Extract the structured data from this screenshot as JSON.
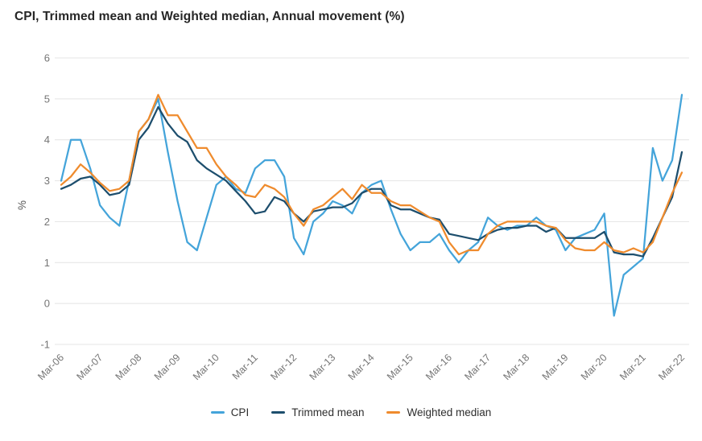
{
  "title": "CPI, Trimmed mean and Weighted median, Annual movement (%)",
  "colors": {
    "cpi": "#44a4da",
    "trimmed_mean": "#1d4e6d",
    "weighted_median": "#ef8b2d",
    "grid": "#e4e4e4",
    "axis_text": "#757575",
    "title_text": "#262626",
    "legend_text": "#2e2e2e"
  },
  "legend": {
    "items": [
      "CPI",
      "Trimmed mean",
      "Weighted median"
    ]
  },
  "chart_data": {
    "type": "line",
    "title": "CPI, Trimmed mean and Weighted median, Annual movement (%)",
    "xlabel": "",
    "ylabel": "%",
    "ylim": [
      -1,
      6
    ],
    "yticks": [
      6,
      5,
      4,
      3,
      2,
      1,
      0,
      -1
    ],
    "grid": "horizontal",
    "legend_position": "bottom",
    "x_frequency": "quarterly",
    "x_tick_labels": [
      "Mar-06",
      "Mar-07",
      "Mar-08",
      "Mar-09",
      "Mar-10",
      "Mar-11",
      "Mar-12",
      "Mar-13",
      "Mar-14",
      "Mar-15",
      "Mar-16",
      "Mar-17",
      "Mar-18",
      "Mar-19",
      "Mar-20",
      "Mar-21",
      "Mar-22"
    ],
    "tick_every": 4,
    "series": [
      {
        "name": "CPI",
        "color": "#44a4da",
        "values": [
          3.0,
          4.0,
          4.0,
          3.3,
          2.4,
          2.1,
          1.9,
          3.0,
          4.2,
          4.5,
          5.0,
          3.7,
          2.5,
          1.5,
          1.3,
          2.1,
          2.9,
          3.1,
          2.8,
          2.7,
          3.3,
          3.5,
          3.5,
          3.1,
          1.6,
          1.2,
          2.0,
          2.2,
          2.5,
          2.4,
          2.2,
          2.7,
          2.9,
          3.0,
          2.3,
          1.7,
          1.3,
          1.5,
          1.5,
          1.7,
          1.3,
          1.0,
          1.3,
          1.5,
          2.1,
          1.9,
          1.8,
          1.9,
          1.9,
          2.1,
          1.9,
          1.8,
          1.3,
          1.6,
          1.7,
          1.8,
          2.2,
          -0.3,
          0.7,
          0.9,
          1.1,
          3.8,
          3.0,
          3.5,
          5.1
        ]
      },
      {
        "name": "Trimmed mean",
        "color": "#1d4e6d",
        "values": [
          2.8,
          2.9,
          3.05,
          3.1,
          2.9,
          2.65,
          2.7,
          2.9,
          4.0,
          4.3,
          4.8,
          4.4,
          4.1,
          3.95,
          3.5,
          3.3,
          3.15,
          3.0,
          2.75,
          2.5,
          2.2,
          2.25,
          2.6,
          2.5,
          2.2,
          2.0,
          2.25,
          2.3,
          2.35,
          2.35,
          2.45,
          2.7,
          2.8,
          2.8,
          2.4,
          2.3,
          2.3,
          2.2,
          2.1,
          2.05,
          1.7,
          1.65,
          1.6,
          1.55,
          1.7,
          1.8,
          1.85,
          1.85,
          1.9,
          1.9,
          1.75,
          1.85,
          1.6,
          1.6,
          1.6,
          1.6,
          1.75,
          1.25,
          1.2,
          1.2,
          1.15,
          1.6,
          2.1,
          2.6,
          3.7
        ]
      },
      {
        "name": "Weighted median",
        "color": "#ef8b2d",
        "values": [
          2.9,
          3.1,
          3.4,
          3.2,
          2.95,
          2.75,
          2.8,
          3.0,
          4.2,
          4.5,
          5.1,
          4.6,
          4.6,
          4.2,
          3.8,
          3.8,
          3.4,
          3.1,
          2.9,
          2.65,
          2.6,
          2.9,
          2.8,
          2.6,
          2.2,
          1.9,
          2.3,
          2.4,
          2.6,
          2.8,
          2.55,
          2.9,
          2.7,
          2.7,
          2.5,
          2.4,
          2.4,
          2.25,
          2.1,
          2.0,
          1.5,
          1.2,
          1.3,
          1.3,
          1.7,
          1.9,
          2.0,
          2.0,
          2.0,
          2.0,
          1.9,
          1.85,
          1.55,
          1.35,
          1.3,
          1.3,
          1.5,
          1.3,
          1.25,
          1.35,
          1.25,
          1.5,
          2.1,
          2.7,
          3.2
        ]
      }
    ]
  }
}
